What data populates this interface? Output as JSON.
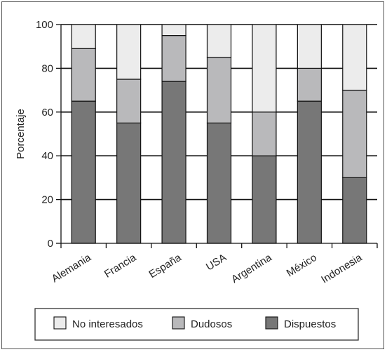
{
  "chart_data": {
    "type": "bar",
    "stacked": true,
    "categories": [
      "Alemania",
      "Francia",
      "España",
      "USA",
      "Argentina",
      "México",
      "Indonesia"
    ],
    "series": [
      {
        "name": "Dispuestos",
        "values": [
          65,
          55,
          74,
          55,
          40,
          65,
          30
        ],
        "color": "#777777"
      },
      {
        "name": "Dudosos",
        "values": [
          24,
          20,
          21,
          30,
          20,
          15,
          40
        ],
        "color": "#b9b9bb"
      },
      {
        "name": "No interesados",
        "values": [
          11,
          25,
          5,
          15,
          40,
          20,
          30
        ],
        "color": "#ececec"
      }
    ],
    "legend_order": [
      "No interesados",
      "Dudosos",
      "Dispuestos"
    ],
    "ylabel": "Porcentaje",
    "xlabel": "",
    "ylim": [
      0,
      100
    ],
    "yticks": [
      "0",
      "20",
      "40",
      "60",
      "80",
      "100"
    ],
    "grid": true,
    "legend_position": "bottom"
  }
}
